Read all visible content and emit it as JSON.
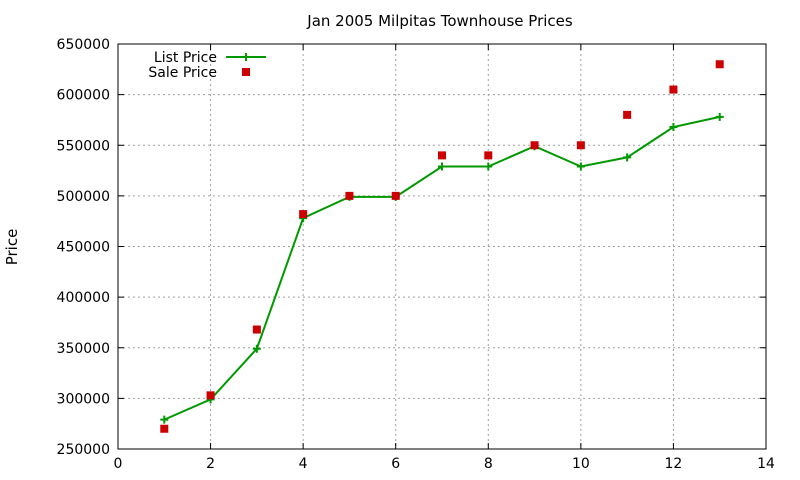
{
  "chart_data": {
    "type": "line",
    "title": "Jan 2005 Milpitas Townhouse Prices",
    "xlabel": "",
    "ylabel": "Price",
    "xlim": [
      0,
      14
    ],
    "ylim": [
      250000,
      650000
    ],
    "xticks": [
      0,
      2,
      4,
      6,
      8,
      10,
      12,
      14
    ],
    "yticks": [
      250000,
      300000,
      350000,
      400000,
      450000,
      500000,
      550000,
      600000,
      650000
    ],
    "grid": true,
    "legend_position": "top-left",
    "series": [
      {
        "name": "List Price",
        "style": "line-points",
        "marker": "plus",
        "color": "#009900",
        "x": [
          1,
          2,
          3,
          4,
          5,
          6,
          7,
          8,
          9,
          10,
          11,
          12,
          13
        ],
        "y": [
          279000,
          299000,
          349000,
          478000,
          499000,
          499000,
          529000,
          529000,
          549000,
          529000,
          538000,
          568000,
          578000
        ]
      },
      {
        "name": "Sale Price",
        "style": "points",
        "marker": "square",
        "color": "#cc0000",
        "x": [
          1,
          2,
          3,
          4,
          5,
          6,
          7,
          8,
          9,
          10,
          11,
          12,
          13
        ],
        "y": [
          270000,
          303000,
          368000,
          482000,
          500000,
          500000,
          540000,
          540000,
          550000,
          550000,
          580000,
          605000,
          630000
        ]
      }
    ]
  }
}
